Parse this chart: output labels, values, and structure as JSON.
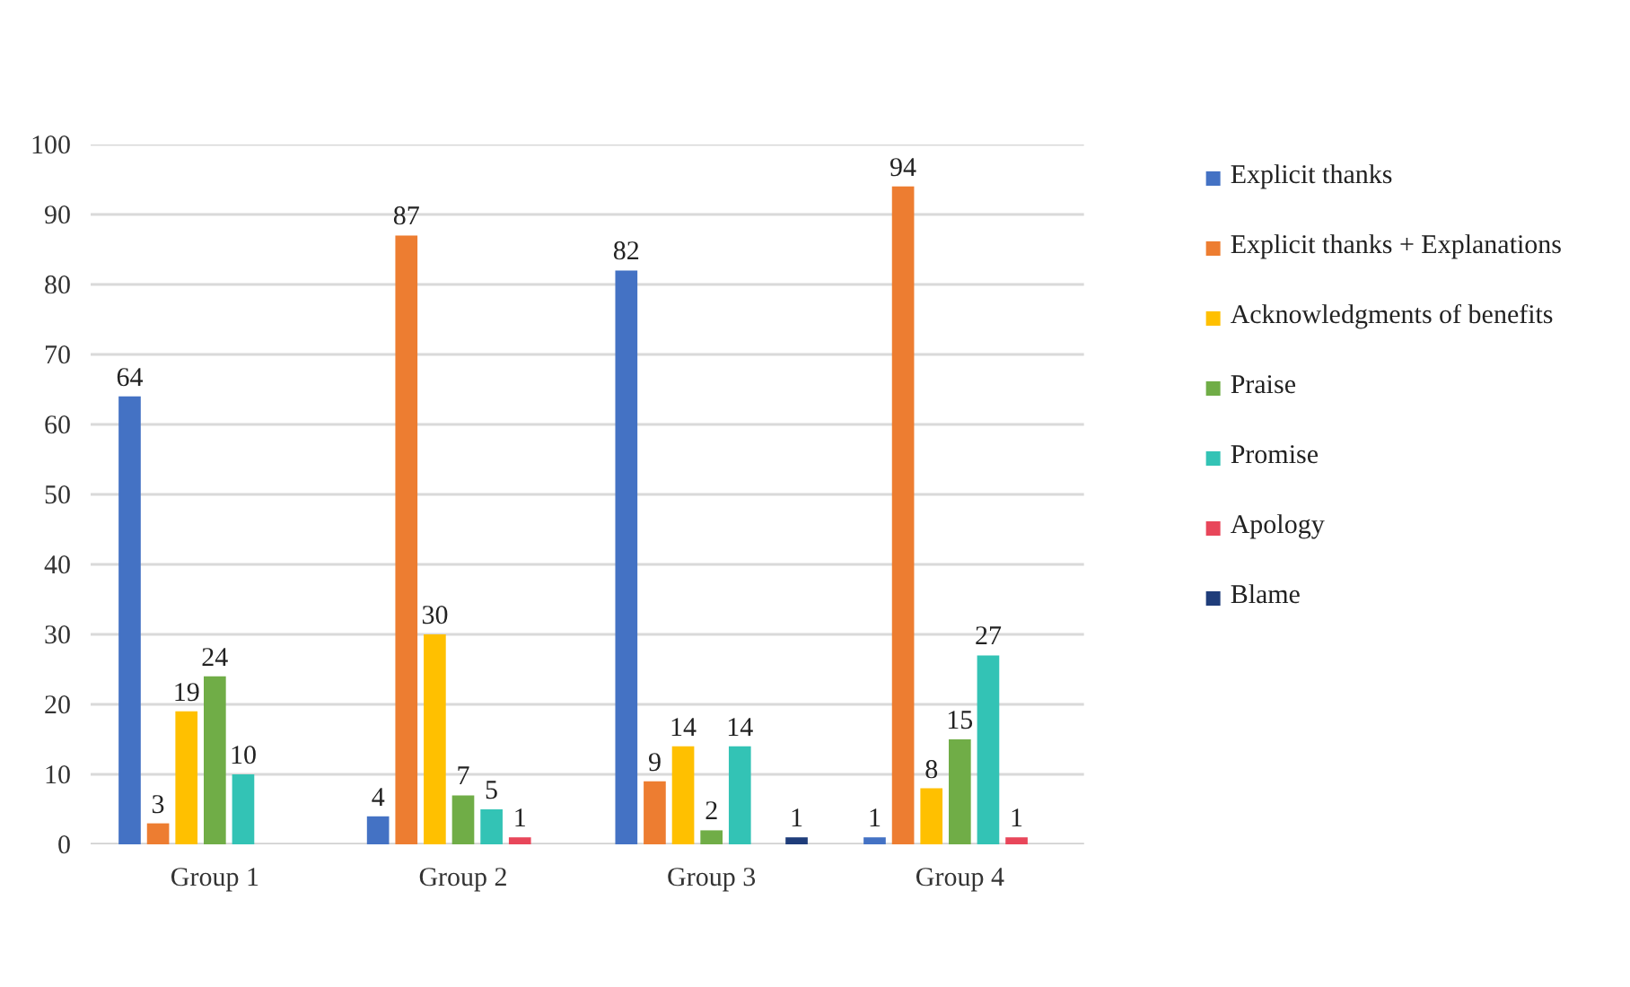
{
  "chart_data": {
    "type": "bar",
    "categories": [
      "Group 1",
      "Group 2",
      "Group 3",
      "Group 4"
    ],
    "series": [
      {
        "name": "Explicit thanks",
        "color": "#4472c4",
        "values": [
          64,
          4,
          82,
          1
        ]
      },
      {
        "name": "Explicit thanks + Explanations",
        "color": "#ed7d31",
        "values": [
          3,
          87,
          9,
          94
        ]
      },
      {
        "name": "Acknowledgments of benefits",
        "color": "#ffc000",
        "values": [
          19,
          30,
          14,
          8
        ]
      },
      {
        "name": "Praise",
        "color": "#70ad47",
        "values": [
          24,
          7,
          2,
          15
        ]
      },
      {
        "name": "Promise",
        "color": "#33c3b5",
        "values": [
          10,
          5,
          14,
          27
        ]
      },
      {
        "name": "Apology",
        "color": "#e8465a",
        "values": [
          null,
          1,
          null,
          1
        ]
      },
      {
        "name": "Blame",
        "color": "#1f3d7a",
        "values": [
          null,
          null,
          1,
          null
        ]
      }
    ],
    "ylim": [
      0,
      100
    ],
    "yticks": [
      0,
      10,
      20,
      30,
      40,
      50,
      60,
      70,
      80,
      90,
      100
    ],
    "grid": "y",
    "legend": "right",
    "data_labels": true
  }
}
